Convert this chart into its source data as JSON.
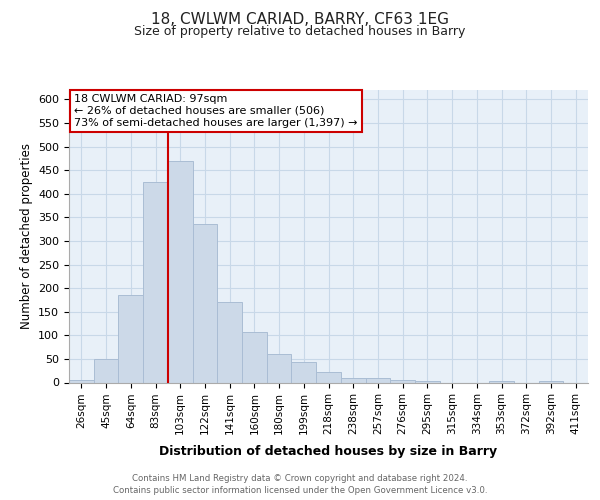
{
  "title_line1": "18, CWLWM CARIAD, BARRY, CF63 1EG",
  "title_line2": "Size of property relative to detached houses in Barry",
  "xlabel": "Distribution of detached houses by size in Barry",
  "ylabel": "Number of detached properties",
  "categories": [
    "26sqm",
    "45sqm",
    "64sqm",
    "83sqm",
    "103sqm",
    "122sqm",
    "141sqm",
    "160sqm",
    "180sqm",
    "199sqm",
    "218sqm",
    "238sqm",
    "257sqm",
    "276sqm",
    "295sqm",
    "315sqm",
    "334sqm",
    "353sqm",
    "372sqm",
    "392sqm",
    "411sqm"
  ],
  "values": [
    5,
    50,
    185,
    425,
    470,
    335,
    170,
    108,
    60,
    44,
    22,
    10,
    10,
    5,
    3,
    0,
    0,
    3,
    0,
    3,
    0
  ],
  "bar_color": "#ccd9e8",
  "bar_edge_color": "#aabdd4",
  "vline_x_index": 4,
  "vline_color": "#cc0000",
  "ylim": [
    0,
    620
  ],
  "yticks": [
    0,
    50,
    100,
    150,
    200,
    250,
    300,
    350,
    400,
    450,
    500,
    550,
    600
  ],
  "annotation_title": "18 CWLWM CARIAD: 97sqm",
  "annotation_line1": "← 26% of detached houses are smaller (506)",
  "annotation_line2": "73% of semi-detached houses are larger (1,397) →",
  "annotation_box_color": "#ffffff",
  "annotation_box_edge": "#cc0000",
  "footer_line1": "Contains HM Land Registry data © Crown copyright and database right 2024.",
  "footer_line2": "Contains public sector information licensed under the Open Government Licence v3.0.",
  "grid_color": "#c8d8e8",
  "background_color": "#e8f0f8"
}
